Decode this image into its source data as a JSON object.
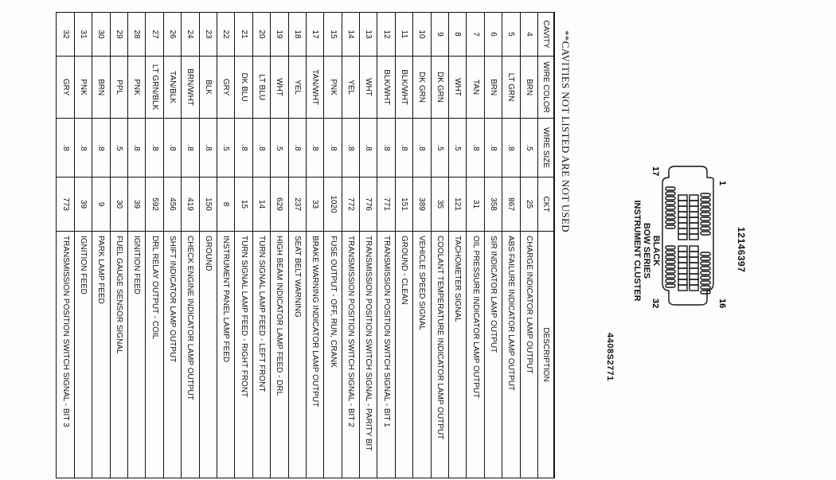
{
  "connector": {
    "part_number": "12146397",
    "pin_labels": {
      "top_left": "1",
      "bottom_left": "17",
      "top_right": "16",
      "bottom_right": "32"
    },
    "label_lines": [
      "BLACK",
      "BOW SERIES",
      "INSTRUMENT CLUSTER"
    ]
  },
  "figure_number": "4408S2771",
  "note": "**CAVITIES NOT LISTED ARE NOT USED",
  "table": {
    "headers": [
      "CAVITY",
      "WIRE COLOR",
      "WIRE SIZE",
      "CKT",
      "DESCRIPTION"
    ],
    "rows": [
      [
        "4",
        "BRN",
        ".5",
        "25",
        "CHARGE INDICATOR LAMP OUTPUT"
      ],
      [
        "5",
        "LT GRN",
        ".8",
        "867",
        "ABS FAILURE INDICATOR LAMP OUTPUT"
      ],
      [
        "6",
        "BRN",
        ".8",
        "358",
        "SIR INDICATOR LAMP OUTPUT"
      ],
      [
        "7",
        "TAN",
        ".8",
        "31",
        "OIL PRESSURE INDICATOR LAMP OUTPUT"
      ],
      [
        "8",
        "WHT",
        ".5",
        "121",
        "TACHOMETER SIGNAL"
      ],
      [
        "9",
        "DK GRN",
        ".5",
        "35",
        "COOLANT TEMPERATURE INDICATOR LAMP OUTPUT"
      ],
      [
        "10",
        "DK GRN",
        ".8",
        "389",
        "VEHICLE SPEED SIGNAL"
      ],
      [
        "11",
        "BLK/WHT",
        ".8",
        "151",
        "GROUND - CLEAN"
      ],
      [
        "12",
        "BLK/WHT",
        ".8",
        "771",
        "TRANSMISSION POSITION SWITCH SIGNAL - BIT 1"
      ],
      [
        "13",
        "WHT",
        ".8",
        "776",
        "TRANSMISSION POSITION SWITCH SIGNAL - PARITY BIT"
      ],
      [
        "14",
        "YEL",
        ".8",
        "772",
        "TRANSMISSION POSITION SWITCH SIGNAL - BIT 2"
      ],
      [
        "15",
        "PNK",
        ".8",
        "1020",
        "FUSE OUTPUT - OFF, RUN, CRANK"
      ],
      [
        "17",
        "TAN/WHT",
        ".8",
        "33",
        "BRAKE WARNING INDICATOR LAMP OUTPUT"
      ],
      [
        "18",
        "YEL",
        ".8",
        "237",
        "SEAT BELT WARNING"
      ],
      [
        "19",
        "WHT",
        ".5",
        "629",
        "HIGH BEAM INDICATOR LAMP FEED - DRL"
      ],
      [
        "20",
        "LT BLU",
        ".8",
        "14",
        "TURN SIGNAL LAMP FEED - LEFT FRONT"
      ],
      [
        "21",
        "DK BLU",
        ".8",
        "15",
        "TURN SIGNAL LAMP FEED - RIGHT FRONT"
      ],
      [
        "22",
        "GRY",
        ".5",
        "8",
        "INSTRUMENT PANEL LAMP FEED"
      ],
      [
        "23",
        "BLK",
        ".8",
        "150",
        "GROUND"
      ],
      [
        "24",
        "BRN/WHT",
        ".8",
        "419",
        "CHECK ENGINE INDICATOR LAMP OUTPUT"
      ],
      [
        "26",
        "TAN/BLK",
        ".8",
        "456",
        "SHIFT INDICATOR LAMP OUTPUT"
      ],
      [
        "27",
        "LT GRN/BLK",
        ".8",
        "592",
        "DRL RELAY OUTPUT - COIL"
      ],
      [
        "28",
        "PNK",
        ".8",
        "39",
        "IGNITION FEED"
      ],
      [
        "29",
        "PPL",
        ".5",
        "30",
        "FUEL GAUGE SENSOR SIGNAL"
      ],
      [
        "30",
        "BRN",
        ".8",
        "9",
        "PARK LAMP FEED"
      ],
      [
        "31",
        "PNK",
        ".8",
        "39",
        "IGNITION FEED"
      ],
      [
        "32",
        "GRY",
        ".8",
        "773",
        "TRANSMISSION POSITION SWITCH SIGNAL - BIT 3"
      ]
    ]
  }
}
